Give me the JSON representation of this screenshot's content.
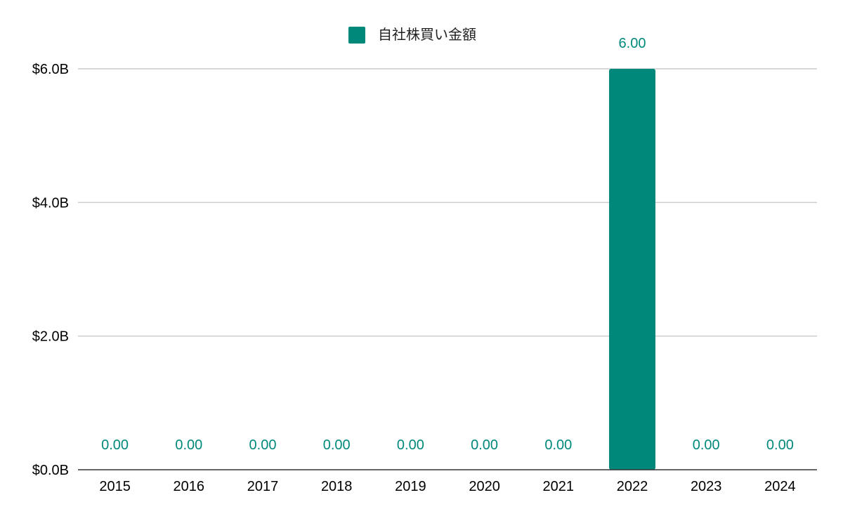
{
  "chart_data": {
    "type": "bar",
    "categories": [
      "2015",
      "2016",
      "2017",
      "2018",
      "2019",
      "2020",
      "2021",
      "2022",
      "2023",
      "2024"
    ],
    "series": [
      {
        "name": "自社株買い金額",
        "values": [
          0,
          0,
          0,
          0,
          0,
          0,
          0,
          6,
          0,
          0
        ],
        "data_labels": [
          "0.00",
          "0.00",
          "0.00",
          "0.00",
          "0.00",
          "0.00",
          "0.00",
          "6.00",
          "0.00",
          "0.00"
        ],
        "color": "#00897b"
      }
    ],
    "yticks": [
      {
        "value": 0,
        "label": "$0.0B"
      },
      {
        "value": 2,
        "label": "$2.0B"
      },
      {
        "value": 4,
        "label": "$4.0B"
      },
      {
        "value": 6,
        "label": "$6.0B"
      }
    ],
    "ylim": [
      0,
      6
    ],
    "grid": true,
    "legend_position": "top-center",
    "gridline_color": "#cccccc",
    "axis_color": "#333333"
  }
}
